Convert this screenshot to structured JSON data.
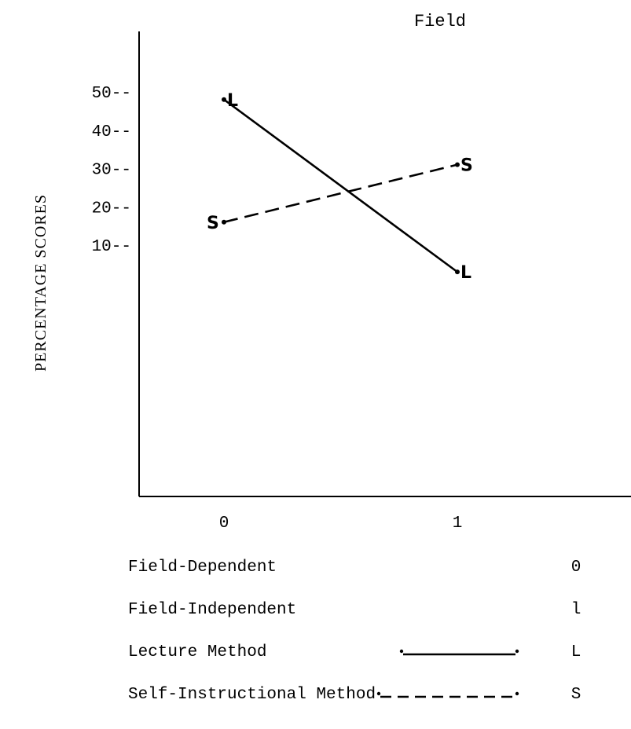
{
  "chart_data": {
    "type": "line",
    "title": "Field",
    "ylabel": "PERCENTAGE SCORES",
    "xlabel": "",
    "ylim": [
      0,
      55
    ],
    "y_ticks": [
      "50--",
      "40--",
      "30--",
      "20--",
      "10--"
    ],
    "y_tick_values": [
      50,
      40,
      30,
      20,
      10
    ],
    "x_ticks": [
      "0",
      "1"
    ],
    "x": [
      0,
      1
    ],
    "series": [
      {
        "name": "L",
        "values": [
          48,
          3
        ],
        "style": "solid",
        "point_label": "L"
      },
      {
        "name": "S",
        "values": [
          16,
          31
        ],
        "style": "dashed",
        "point_label": "S"
      }
    ],
    "grid": false,
    "legend": [
      {
        "label": "Field-Dependent",
        "code": "0",
        "sample": "none"
      },
      {
        "label": "Field-Independent",
        "code": "l",
        "sample": "none"
      },
      {
        "label": "Lecture Method",
        "code": "L",
        "sample": "solid"
      },
      {
        "label": "Self-Instructional Method",
        "code": "S",
        "sample": "dashed"
      }
    ]
  },
  "colors": {
    "ink": "#000000",
    "background": "#ffffff"
  }
}
